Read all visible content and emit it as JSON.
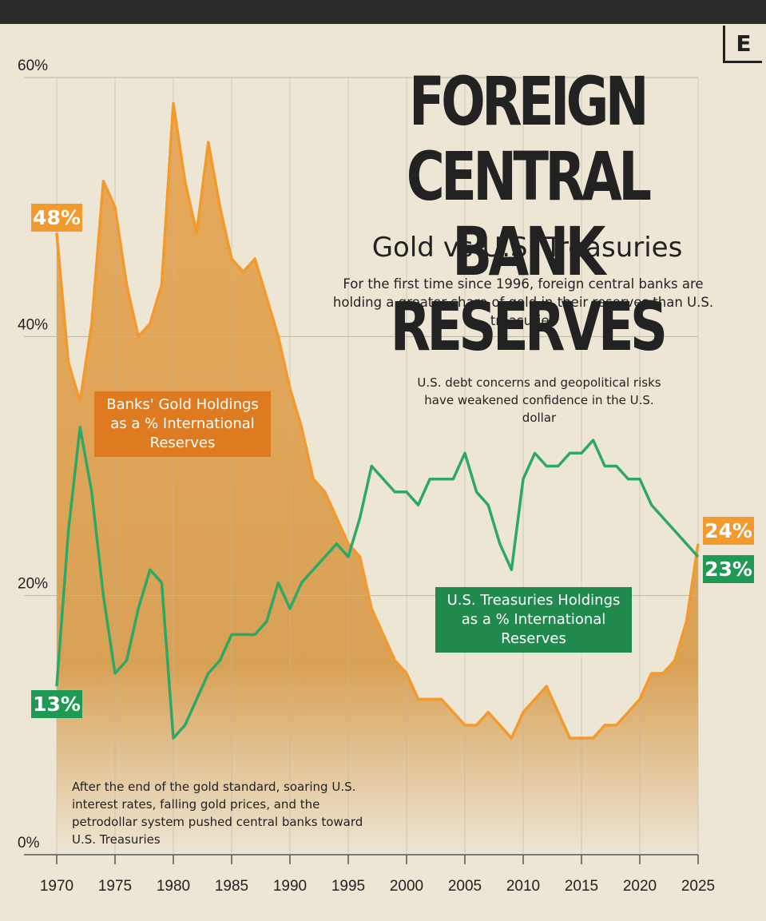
{
  "chart_data": {
    "type": "line",
    "title": "FOREIGN CENTRAL BANK RESERVES",
    "subtitle": "Gold vs U.S. Treasuries",
    "description": "For the first time since 1996, foreign central banks are holding a greater share of gold in their reserves than U.S. treasuries",
    "annotations": [
      "U.S. debt concerns and geopolitical risks have weakened confidence in the U.S. dollar",
      "After the end of the gold standard, soaring U.S. interest rates, falling gold prices, and the petrodollar system pushed central banks toward U.S. Treasuries"
    ],
    "logo": "E",
    "x": [
      1970,
      1971,
      1972,
      1973,
      1974,
      1975,
      1976,
      1977,
      1978,
      1979,
      1980,
      1981,
      1982,
      1983,
      1984,
      1985,
      1986,
      1987,
      1988,
      1989,
      1990,
      1991,
      1992,
      1993,
      1994,
      1995,
      1996,
      1997,
      1998,
      1999,
      2000,
      2001,
      2002,
      2003,
      2004,
      2005,
      2006,
      2007,
      2008,
      2009,
      2010,
      2011,
      2012,
      2013,
      2014,
      2015,
      2016,
      2017,
      2018,
      2019,
      2020,
      2021,
      2022,
      2023,
      2024,
      2025
    ],
    "series": [
      {
        "name": "Banks' Gold Holdings as a % International Reserves",
        "color": "#f39a2e",
        "values": [
          48,
          38,
          35,
          41,
          52,
          50,
          44,
          40,
          41,
          44,
          58,
          52,
          48,
          55,
          50,
          46,
          45,
          46,
          43,
          40,
          36,
          33,
          29,
          28,
          26,
          24,
          23,
          19,
          17,
          15,
          14,
          12,
          12,
          12,
          11,
          10,
          10,
          11,
          10,
          9,
          11,
          12,
          13,
          11,
          9,
          9,
          9,
          10,
          10,
          11,
          12,
          14,
          14,
          15,
          18,
          24
        ],
        "value_labels": [
          "48%",
          null,
          null,
          null,
          null,
          null,
          null,
          null,
          null,
          null,
          null,
          null,
          null,
          null,
          null,
          null,
          null,
          null,
          null,
          null,
          null,
          null,
          null,
          null,
          null,
          null,
          null,
          null,
          null,
          null,
          null,
          null,
          null,
          null,
          null,
          null,
          null,
          null,
          null,
          null,
          null,
          null,
          null,
          null,
          null,
          null,
          null,
          null,
          null,
          null,
          null,
          null,
          null,
          null,
          null,
          "24%"
        ]
      },
      {
        "name": "U.S. Treasuries Holdings as a % International Reserves",
        "color": "#2fa866",
        "values": [
          13,
          25,
          33,
          28,
          20,
          14,
          15,
          19,
          22,
          21,
          9,
          10,
          12,
          14,
          15,
          17,
          17,
          17,
          18,
          21,
          19,
          21,
          22,
          23,
          24,
          23,
          26,
          30,
          29,
          28,
          28,
          27,
          29,
          29,
          29,
          31,
          28,
          27,
          24,
          22,
          29,
          31,
          30,
          30,
          31,
          31,
          32,
          30,
          30,
          29,
          29,
          27,
          26,
          25,
          24,
          23
        ],
        "value_labels": [
          "13%",
          null,
          null,
          null,
          null,
          null,
          null,
          null,
          null,
          null,
          null,
          null,
          null,
          null,
          null,
          null,
          null,
          null,
          null,
          null,
          null,
          null,
          null,
          null,
          null,
          null,
          null,
          null,
          null,
          null,
          null,
          null,
          null,
          null,
          null,
          null,
          null,
          null,
          null,
          null,
          null,
          null,
          null,
          null,
          null,
          null,
          null,
          null,
          null,
          null,
          null,
          null,
          null,
          null,
          null,
          "23%"
        ]
      }
    ],
    "xlim": [
      1970,
      2025
    ],
    "xticks": [
      1970,
      1975,
      1980,
      1985,
      1990,
      1995,
      2000,
      2005,
      2010,
      2015,
      2020,
      2025
    ],
    "ylim": [
      0,
      60
    ],
    "yticks": [
      {
        "value": 0,
        "label": "0%"
      },
      {
        "value": 20,
        "label": "20%"
      },
      {
        "value": 40,
        "label": "40%"
      },
      {
        "value": 60,
        "label": "60%"
      }
    ],
    "grid": true
  }
}
